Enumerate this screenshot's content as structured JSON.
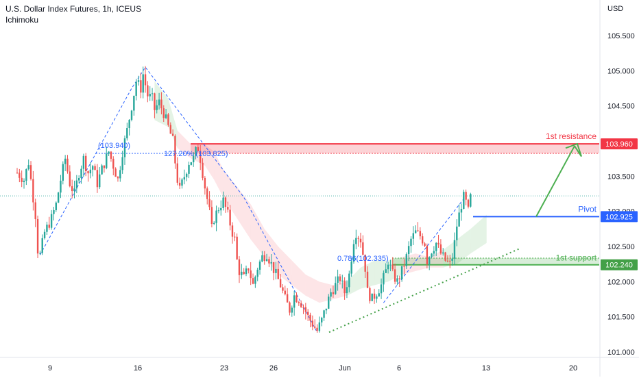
{
  "header": {
    "symbol_line": "U.S. Dollar Index Futures, 1h, ICEUS",
    "indicator": "Ichimoku"
  },
  "chart_data": {
    "type": "candlestick",
    "currency": "USD",
    "y_ticks": [
      "105.500",
      "105.000",
      "104.500",
      "104.000",
      "103.500",
      "103.000",
      "102.500",
      "102.000",
      "101.500",
      "101.000"
    ],
    "ylim": [
      100.95,
      105.75
    ],
    "x_ticks": [
      "9",
      "16",
      "23",
      "26",
      "Jun",
      "6",
      "13",
      "20"
    ],
    "price_path": [
      [
        0,
        103.55
      ],
      [
        3,
        103.45
      ],
      [
        5,
        103.7
      ],
      [
        7,
        103.2
      ],
      [
        8,
        102.95
      ],
      [
        9,
        102.45
      ],
      [
        10,
        102.38
      ],
      [
        12,
        102.7
      ],
      [
        15,
        102.9
      ],
      [
        17,
        103.1
      ],
      [
        19,
        103.45
      ],
      [
        21,
        103.75
      ],
      [
        23,
        103.4
      ],
      [
        25,
        103.25
      ],
      [
        27,
        103.55
      ],
      [
        29,
        103.75
      ],
      [
        31,
        103.55
      ],
      [
        33,
        103.65
      ],
      [
        35,
        103.4
      ],
      [
        37,
        103.6
      ],
      [
        40,
        103.85
      ],
      [
        42,
        103.65
      ],
      [
        44,
        103.45
      ],
      [
        46,
        103.85
      ],
      [
        48,
        104.15
      ],
      [
        50,
        104.5
      ],
      [
        52,
        104.85
      ],
      [
        54,
        104.75
      ],
      [
        55,
        104.95
      ],
      [
        57,
        104.65
      ],
      [
        59,
        104.6
      ],
      [
        60,
        104.45
      ],
      [
        62,
        104.55
      ],
      [
        64,
        104.4
      ],
      [
        66,
        104.2
      ],
      [
        68,
        104.0
      ],
      [
        69,
        103.7
      ],
      [
        70,
        103.45
      ],
      [
        71,
        103.3
      ],
      [
        73,
        103.5
      ],
      [
        75,
        103.7
      ],
      [
        77,
        103.75
      ],
      [
        78,
        103.85
      ],
      [
        79,
        103.9
      ],
      [
        80,
        103.75
      ],
      [
        82,
        103.35
      ],
      [
        84,
        103.0
      ],
      [
        85,
        102.75
      ],
      [
        86,
        102.9
      ],
      [
        88,
        103.05
      ],
      [
        90,
        103.15
      ],
      [
        92,
        102.95
      ],
      [
        94,
        102.7
      ],
      [
        95,
        102.6
      ],
      [
        96,
        102.3
      ],
      [
        97,
        102.15
      ],
      [
        99,
        102.05
      ],
      [
        101,
        102.2
      ],
      [
        103,
        101.95
      ],
      [
        105,
        102.2
      ],
      [
        107,
        102.35
      ],
      [
        109,
        102.4
      ],
      [
        111,
        102.25
      ],
      [
        113,
        102.1
      ],
      [
        115,
        101.95
      ],
      [
        117,
        101.75
      ],
      [
        119,
        101.6
      ],
      [
        121,
        101.8
      ],
      [
        123,
        101.75
      ],
      [
        125,
        101.65
      ],
      [
        127,
        101.5
      ],
      [
        129,
        101.4
      ],
      [
        131,
        101.3
      ],
      [
        133,
        101.45
      ],
      [
        135,
        101.65
      ],
      [
        137,
        101.85
      ],
      [
        139,
        101.95
      ],
      [
        141,
        102.05
      ],
      [
        143,
        101.85
      ],
      [
        145,
        102.1
      ],
      [
        146,
        102.35
      ],
      [
        147,
        102.6
      ],
      [
        148,
        102.7
      ],
      [
        149,
        102.65
      ],
      [
        150,
        102.6
      ],
      [
        151,
        102.4
      ],
      [
        152,
        102.2
      ],
      [
        153,
        101.85
      ],
      [
        155,
        101.75
      ],
      [
        157,
        101.85
      ],
      [
        159,
        101.95
      ],
      [
        161,
        102.15
      ],
      [
        162,
        102.3
      ],
      [
        164,
        102.1
      ],
      [
        166,
        102.0
      ],
      [
        168,
        102.15
      ],
      [
        170,
        102.35
      ],
      [
        172,
        102.6
      ],
      [
        174,
        102.7
      ],
      [
        176,
        102.65
      ],
      [
        178,
        102.55
      ],
      [
        179,
        102.3
      ],
      [
        181,
        102.45
      ],
      [
        183,
        102.55
      ],
      [
        185,
        102.4
      ],
      [
        187,
        102.3
      ],
      [
        189,
        102.25
      ],
      [
        190,
        102.35
      ],
      [
        191,
        102.55
      ],
      [
        192,
        102.8
      ],
      [
        193,
        102.95
      ],
      [
        194,
        103.1
      ],
      [
        195,
        103.2
      ],
      [
        196,
        103.12
      ],
      [
        197,
        103.0
      ],
      [
        198,
        103.2
      ]
    ],
    "ichimoku_cloud": [
      [
        60,
        104.3,
        104.85,
        "green"
      ],
      [
        66,
        104.2,
        104.6,
        "green"
      ],
      [
        70,
        103.9,
        104.15,
        "red"
      ],
      [
        76,
        103.75,
        103.95,
        "red"
      ],
      [
        82,
        103.65,
        103.95,
        "red"
      ],
      [
        86,
        103.45,
        103.85,
        "red"
      ],
      [
        90,
        103.2,
        103.6,
        "red"
      ],
      [
        96,
        102.9,
        103.35,
        "red"
      ],
      [
        102,
        102.6,
        103.1,
        "red"
      ],
      [
        108,
        102.35,
        102.75,
        "red"
      ],
      [
        114,
        102.1,
        102.5,
        "red"
      ],
      [
        120,
        101.95,
        102.3,
        "red"
      ],
      [
        126,
        101.8,
        102.1,
        "red"
      ],
      [
        132,
        101.7,
        102.0,
        "red"
      ],
      [
        138,
        101.75,
        101.95,
        "red"
      ],
      [
        144,
        101.8,
        102.0,
        "green"
      ],
      [
        150,
        101.9,
        102.2,
        "green"
      ],
      [
        156,
        101.95,
        102.3,
        "green"
      ],
      [
        162,
        102.0,
        102.3,
        "green"
      ],
      [
        168,
        102.1,
        102.35,
        "red"
      ],
      [
        174,
        102.15,
        102.4,
        "red"
      ],
      [
        180,
        102.2,
        102.35,
        "red"
      ],
      [
        186,
        102.2,
        102.45,
        "green"
      ],
      [
        192,
        102.25,
        102.6,
        "green"
      ],
      [
        198,
        102.4,
        102.75,
        "green"
      ],
      [
        205,
        102.55,
        102.95,
        "green"
      ]
    ],
    "levels": [
      {
        "name": "1st resistance",
        "value": 103.96,
        "label": "103.960",
        "color": "#f23645"
      },
      {
        "name": "Pivot",
        "value": 102.925,
        "label": "102.925",
        "color": "#2962ff"
      },
      {
        "name": "1st support",
        "value": 102.24,
        "label": "102.240",
        "color": "#22ab94"
      }
    ],
    "fib_labels": [
      "(103.940)",
      "127.20% (103.825)",
      "0.786(102.335)"
    ],
    "current_price_line": 103.22
  },
  "colors": {
    "up": "#26a69a",
    "down": "#ef5350",
    "resistance": "#f23645",
    "pivot": "#2962ff",
    "support": "#22ab94",
    "fib": "#2962ff",
    "arrow": "#4caf50"
  }
}
